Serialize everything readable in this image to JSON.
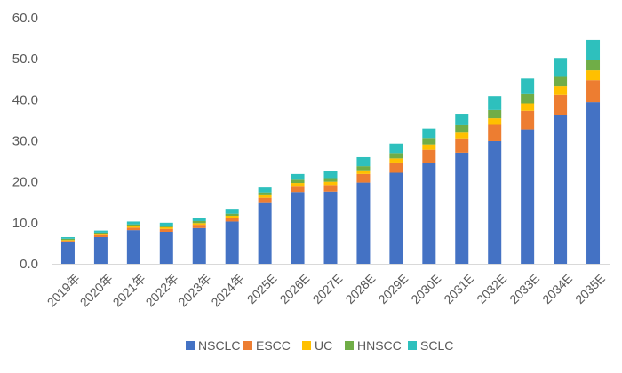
{
  "chart_data": {
    "type": "bar",
    "stacked": true,
    "categories": [
      "2019年",
      "2020年",
      "2021年",
      "2022年",
      "2023年",
      "2024年",
      "2025E",
      "2026E",
      "2027E",
      "2028E",
      "2029E",
      "2030E",
      "2031E",
      "2032E",
      "2033E",
      "2034E",
      "2035E"
    ],
    "series": [
      {
        "name": "NSCLC",
        "color": "#4472C4",
        "values": [
          5.2,
          6.5,
          8.2,
          7.8,
          8.7,
          10.3,
          14.8,
          17.5,
          17.6,
          19.8,
          22.2,
          24.6,
          27.1,
          29.9,
          32.8,
          36.2,
          39.4
        ]
      },
      {
        "name": "ESCC",
        "color": "#ED7D31",
        "values": [
          0.4,
          0.5,
          0.6,
          0.7,
          0.8,
          0.9,
          1.3,
          1.5,
          1.6,
          2.1,
          2.5,
          3.2,
          3.5,
          4.0,
          4.5,
          5.0,
          5.4
        ]
      },
      {
        "name": "UC",
        "color": "#FFC000",
        "values": [
          0.2,
          0.3,
          0.4,
          0.4,
          0.4,
          0.5,
          0.6,
          0.7,
          0.8,
          0.9,
          1.0,
          1.3,
          1.4,
          1.6,
          1.8,
          2.1,
          2.4
        ]
      },
      {
        "name": "HNSCC",
        "color": "#70AD47",
        "values": [
          0.3,
          0.3,
          0.4,
          0.4,
          0.5,
          0.5,
          0.7,
          0.8,
          0.9,
          1.0,
          1.3,
          1.6,
          1.8,
          2.0,
          2.3,
          2.3,
          2.6
        ]
      },
      {
        "name": "SCLC",
        "color": "#2EC0BD",
        "values": [
          0.4,
          0.5,
          0.7,
          0.7,
          0.7,
          1.2,
          1.2,
          1.4,
          1.8,
          2.2,
          2.3,
          2.3,
          2.8,
          3.4,
          3.8,
          4.6,
          4.8
        ]
      }
    ],
    "ylim": [
      0,
      60
    ],
    "yticks": [
      0,
      10,
      20,
      30,
      40,
      50,
      60
    ],
    "ytick_labels": [
      "0.0",
      "10.0",
      "20.0",
      "30.0",
      "40.0",
      "50.0",
      "60.0"
    ],
    "grid": false,
    "legend_position": "bottom",
    "title": "",
    "xlabel": "",
    "ylabel": ""
  }
}
